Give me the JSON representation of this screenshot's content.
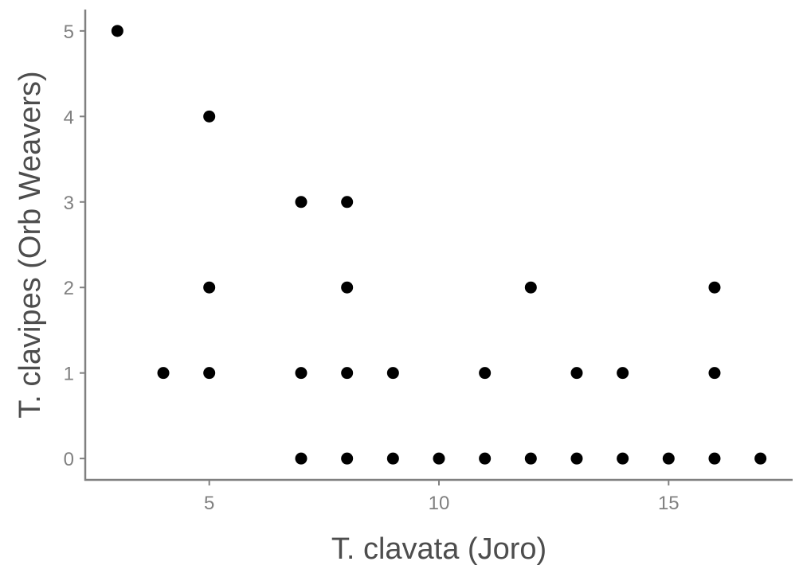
{
  "chart_data": {
    "type": "scatter",
    "title": "",
    "xlabel": "T. clavata (Joro)",
    "ylabel": "T. clavipes (Orb Weavers)",
    "xlim": [
      2.3,
      17.7
    ],
    "ylim": [
      -0.25,
      5.25
    ],
    "xticks": [
      5,
      10,
      15
    ],
    "yticks": [
      0,
      1,
      2,
      3,
      4,
      5
    ],
    "grid": false,
    "legend": "none",
    "point_color": "#000000",
    "axis_color": "#808080",
    "points": [
      {
        "x": 3,
        "y": 5
      },
      {
        "x": 5,
        "y": 4
      },
      {
        "x": 7,
        "y": 3
      },
      {
        "x": 8,
        "y": 3
      },
      {
        "x": 5,
        "y": 2
      },
      {
        "x": 8,
        "y": 2
      },
      {
        "x": 12,
        "y": 2
      },
      {
        "x": 16,
        "y": 2
      },
      {
        "x": 4,
        "y": 1
      },
      {
        "x": 5,
        "y": 1
      },
      {
        "x": 7,
        "y": 1
      },
      {
        "x": 8,
        "y": 1
      },
      {
        "x": 9,
        "y": 1
      },
      {
        "x": 11,
        "y": 1
      },
      {
        "x": 13,
        "y": 1
      },
      {
        "x": 14,
        "y": 1
      },
      {
        "x": 16,
        "y": 1
      },
      {
        "x": 7,
        "y": 0
      },
      {
        "x": 8,
        "y": 0
      },
      {
        "x": 9,
        "y": 0
      },
      {
        "x": 10,
        "y": 0
      },
      {
        "x": 11,
        "y": 0
      },
      {
        "x": 12,
        "y": 0
      },
      {
        "x": 13,
        "y": 0
      },
      {
        "x": 14,
        "y": 0
      },
      {
        "x": 15,
        "y": 0
      },
      {
        "x": 16,
        "y": 0
      },
      {
        "x": 17,
        "y": 0
      }
    ]
  }
}
